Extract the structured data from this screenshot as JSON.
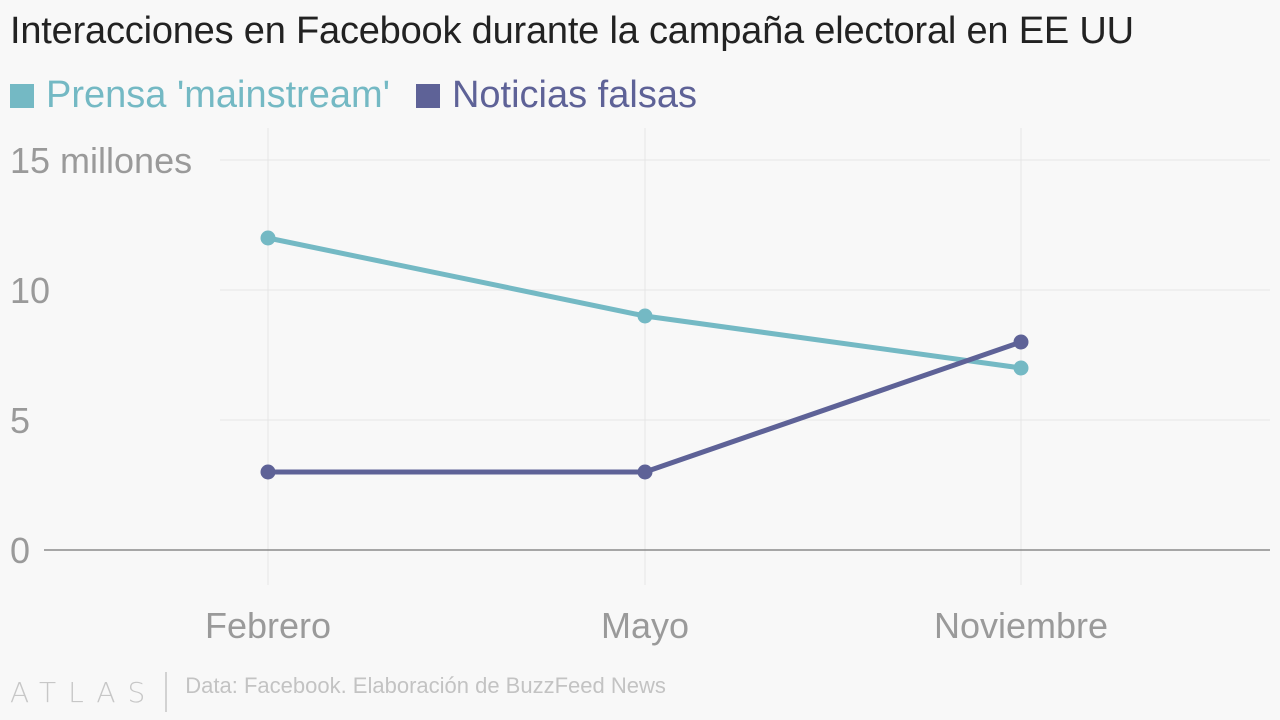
{
  "chart_data": {
    "type": "line",
    "title": "Interacciones en Facebook durante la campaña electoral en EE UU",
    "categories": [
      "Febrero",
      "Mayo",
      "Noviembre"
    ],
    "series": [
      {
        "name": "Prensa 'mainstream'",
        "values": [
          12,
          9,
          7
        ],
        "color": "#74b9c4"
      },
      {
        "name": "Noticias falsas",
        "values": [
          3,
          3,
          8
        ],
        "color": "#5e6297"
      }
    ],
    "yticks": [
      "0",
      "5",
      "10",
      "15 millones"
    ],
    "ytick_values": [
      0,
      5,
      10,
      15
    ],
    "ylim": [
      0,
      15
    ],
    "grid": true,
    "legend_position": "top-left"
  },
  "footer": {
    "logo": "ATLAS",
    "source": "Data: Facebook. Elaboración de BuzzFeed News"
  }
}
